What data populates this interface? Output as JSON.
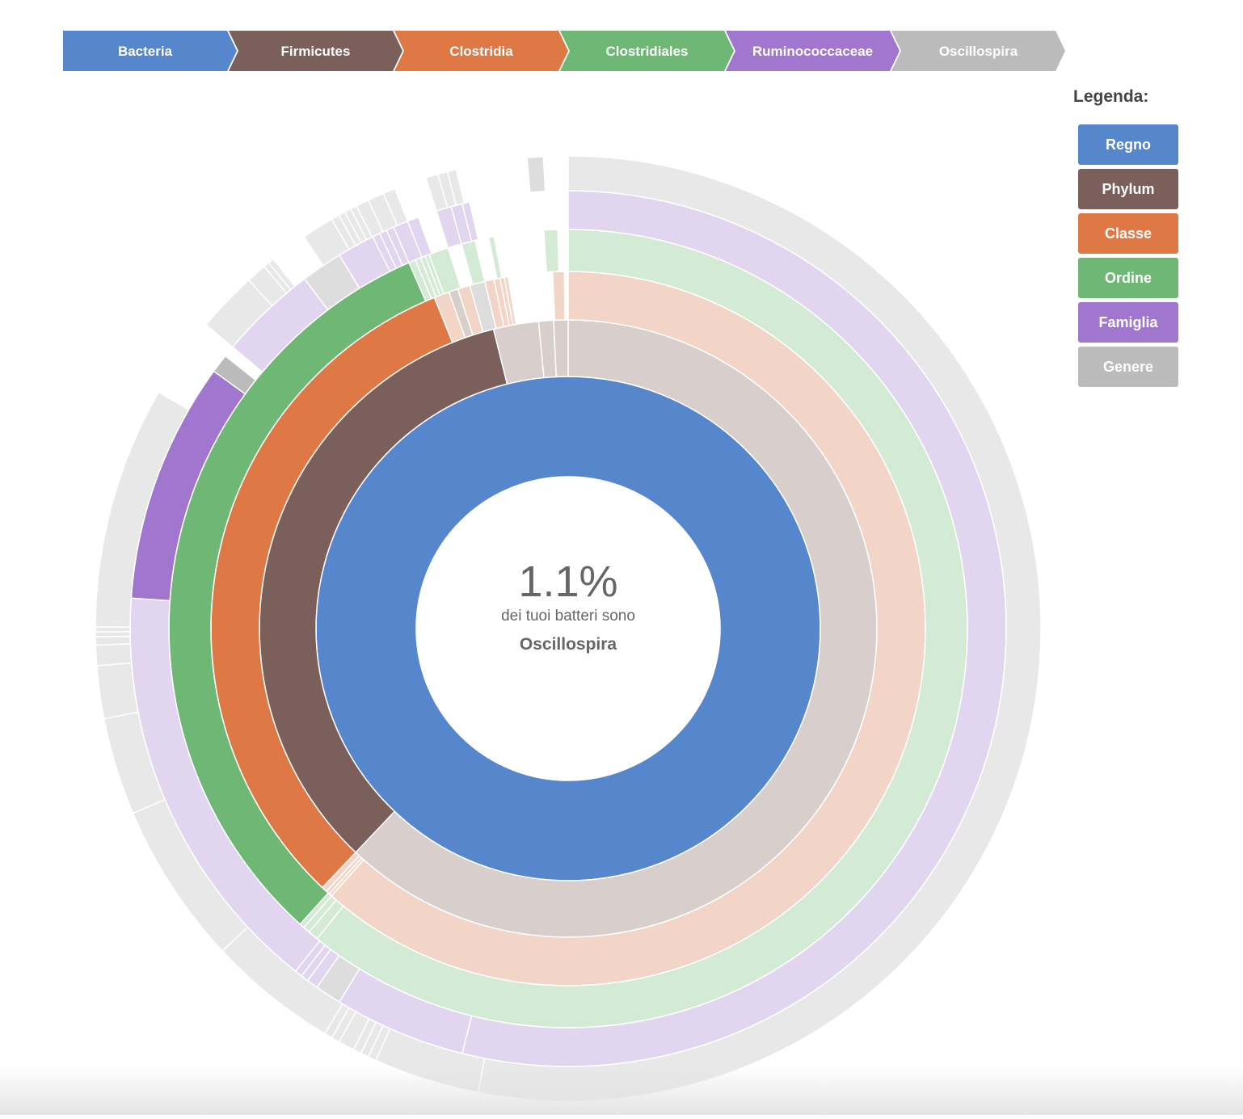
{
  "breadcrumb": [
    {
      "label": "Bacteria",
      "color": "#5687cc"
    },
    {
      "label": "Firmicutes",
      "color": "#7b5f5b"
    },
    {
      "label": "Clostridia",
      "color": "#de7845"
    },
    {
      "label": "Clostridiales",
      "color": "#6eb775"
    },
    {
      "label": "Ruminococcaceae",
      "color": "#a176cf"
    },
    {
      "label": "Oscillospira",
      "color": "#bbbbbb"
    }
  ],
  "legend": {
    "title": "Legenda:",
    "items": [
      {
        "label": "Regno",
        "color": "#5687cc"
      },
      {
        "label": "Phylum",
        "color": "#7b5f5b"
      },
      {
        "label": "Classe",
        "color": "#de7845"
      },
      {
        "label": "Ordine",
        "color": "#6eb775"
      },
      {
        "label": "Famiglia",
        "color": "#a176cf"
      },
      {
        "label": "Genere",
        "color": "#bbbbbb"
      }
    ]
  },
  "center": {
    "percentage": "1.1%",
    "text": "dei tuoi batteri sono",
    "name": "Oscillospira"
  },
  "chart_data": {
    "type": "sunburst",
    "title": "",
    "unit": "degrees of circle (clockwise from top)",
    "levels": [
      "Regno",
      "Phylum",
      "Classe",
      "Ordine",
      "Famiglia",
      "Genere"
    ],
    "selected_path": [
      "Bacteria",
      "Firmicutes",
      "Clostridia",
      "Clostridiales",
      "Ruminococcaceae",
      "Oscillospira"
    ],
    "rings": [
      [
        {
          "start": 0,
          "end": 360,
          "color": "#5687cc",
          "highlight": true
        }
      ],
      [
        {
          "start": 0,
          "end": 223.5,
          "color": "#d8cfcd"
        },
        {
          "start": 223.5,
          "end": 346.0,
          "color": "#7b5f5b",
          "highlight": true
        },
        {
          "start": 346.0,
          "end": 354.5,
          "color": "#d8cfcd"
        },
        {
          "start": 354.5,
          "end": 357.3,
          "color": "#d8cfcd"
        },
        {
          "start": 357.3,
          "end": 360,
          "color": "#d8cfcd"
        }
      ],
      [
        {
          "start": 0,
          "end": 221.5,
          "color": "#f2d5c7"
        },
        {
          "start": 221.5,
          "end": 222.0,
          "color": "#f2d5c7"
        },
        {
          "start": 222.0,
          "end": 222.6,
          "color": "#f2d5c7"
        },
        {
          "start": 222.6,
          "end": 223.5,
          "color": "#f2d5c7"
        },
        {
          "start": 223.5,
          "end": 338.0,
          "color": "#de7845",
          "highlight": true
        },
        {
          "start": 338.0,
          "end": 340.5,
          "color": "#f2d5c7"
        },
        {
          "start": 340.5,
          "end": 342.0,
          "color": "#d8cfcd"
        },
        {
          "start": 342.0,
          "end": 344.0,
          "color": "#f2d5c7"
        },
        {
          "start": 344.0,
          "end": 346.5,
          "color": "#dddddd"
        },
        {
          "start": 346.5,
          "end": 348.0,
          "color": "#f2d5c7"
        },
        {
          "start": 348.0,
          "end": 349.0,
          "color": "#f2d5c7"
        },
        {
          "start": 349.0,
          "end": 349.7,
          "color": "#f2d5c7"
        },
        {
          "start": 349.7,
          "end": 350.3,
          "color": "#f2d5c7"
        },
        {
          "start": 350.3,
          "end": 357.5,
          "color": "#ffffff"
        },
        {
          "start": 357.5,
          "end": 359.4,
          "color": "#f2d5c7"
        }
      ],
      [
        {
          "start": 0,
          "end": 219.0,
          "color": "#d3ead5"
        },
        {
          "start": 219.0,
          "end": 220.5,
          "color": "#d3ead5"
        },
        {
          "start": 220.5,
          "end": 221.5,
          "color": "#d3ead5"
        },
        {
          "start": 221.5,
          "end": 222.2,
          "color": "#d3ead5"
        },
        {
          "start": 222.2,
          "end": 336.5,
          "color": "#6eb775",
          "highlight": true
        },
        {
          "start": 336.5,
          "end": 337.5,
          "color": "#d3ead5"
        },
        {
          "start": 337.5,
          "end": 338.3,
          "color": "#d3ead5"
        },
        {
          "start": 338.3,
          "end": 339.0,
          "color": "#d3ead5"
        },
        {
          "start": 339.0,
          "end": 339.6,
          "color": "#d3ead5"
        },
        {
          "start": 339.6,
          "end": 342.5,
          "color": "#d3ead5"
        },
        {
          "start": 342.5,
          "end": 344.5,
          "color": "#ffffff"
        },
        {
          "start": 344.5,
          "end": 346.5,
          "color": "#d3ead5"
        },
        {
          "start": 346.5,
          "end": 348.5,
          "color": "#ffffff"
        },
        {
          "start": 348.5,
          "end": 349.3,
          "color": "#d3ead5"
        },
        {
          "start": 349.3,
          "end": 356.5,
          "color": "#ffffff"
        },
        {
          "start": 356.5,
          "end": 358.5,
          "color": "#d3ead5"
        }
      ],
      [
        {
          "start": 0,
          "end": 194.0,
          "color": "#e2d5ef"
        },
        {
          "start": 194.0,
          "end": 211.5,
          "color": "#e2d5ef"
        },
        {
          "start": 211.5,
          "end": 215.0,
          "color": "#dddddd"
        },
        {
          "start": 215.0,
          "end": 216.5,
          "color": "#e2d5ef"
        },
        {
          "start": 216.5,
          "end": 217.5,
          "color": "#e2d5ef"
        },
        {
          "start": 217.5,
          "end": 218.5,
          "color": "#e2d5ef"
        },
        {
          "start": 218.5,
          "end": 274.0,
          "color": "#e2d5ef"
        },
        {
          "start": 274.0,
          "end": 306.0,
          "color": "#a176cf",
          "highlight": true
        },
        {
          "start": 306.0,
          "end": 308.5,
          "color": "#bbbbbb"
        },
        {
          "start": 308.5,
          "end": 310.0,
          "color": "#ffffff"
        },
        {
          "start": 310.0,
          "end": 323.0,
          "color": "#e2d5ef"
        },
        {
          "start": 323.0,
          "end": 328.5,
          "color": "#dddddd"
        },
        {
          "start": 328.5,
          "end": 333.5,
          "color": "#e2d5ef"
        },
        {
          "start": 333.5,
          "end": 334.5,
          "color": "#e2d5ef"
        },
        {
          "start": 334.5,
          "end": 335.5,
          "color": "#e2d5ef"
        },
        {
          "start": 335.5,
          "end": 336.5,
          "color": "#e2d5ef"
        },
        {
          "start": 336.5,
          "end": 338.5,
          "color": "#e2d5ef"
        },
        {
          "start": 338.5,
          "end": 340.0,
          "color": "#e2d5ef"
        },
        {
          "start": 340.0,
          "end": 342.5,
          "color": "#ffffff"
        },
        {
          "start": 342.5,
          "end": 344.5,
          "color": "#e2d5ef"
        },
        {
          "start": 344.5,
          "end": 346.0,
          "color": "#e2d5ef"
        },
        {
          "start": 346.0,
          "end": 347.0,
          "color": "#e2d5ef"
        }
      ],
      [
        {
          "start": 0,
          "end": 191.0,
          "color": "#e8e8e8"
        },
        {
          "start": 191.0,
          "end": 204.0,
          "color": "#e8e8e8"
        },
        {
          "start": 204.0,
          "end": 205.0,
          "color": "#e8e8e8"
        },
        {
          "start": 205.0,
          "end": 206.0,
          "color": "#e8e8e8"
        },
        {
          "start": 206.0,
          "end": 207.0,
          "color": "#e8e8e8"
        },
        {
          "start": 207.0,
          "end": 209.0,
          "color": "#e8e8e8"
        },
        {
          "start": 209.0,
          "end": 210.0,
          "color": "#e8e8e8"
        },
        {
          "start": 210.0,
          "end": 211.0,
          "color": "#e8e8e8"
        },
        {
          "start": 211.0,
          "end": 227.0,
          "color": "#e8e8e8"
        },
        {
          "start": 227.0,
          "end": 247.0,
          "color": "#e8e8e8"
        },
        {
          "start": 247.0,
          "end": 259.0,
          "color": "#e8e8e8"
        },
        {
          "start": 259.0,
          "end": 265.5,
          "color": "#e8e8e8"
        },
        {
          "start": 265.5,
          "end": 268.0,
          "color": "#e8e8e8"
        },
        {
          "start": 268.0,
          "end": 269.0,
          "color": "#e8e8e8"
        },
        {
          "start": 269.0,
          "end": 269.6,
          "color": "#e8e8e8"
        },
        {
          "start": 269.6,
          "end": 270.2,
          "color": "#e8e8e8"
        },
        {
          "start": 270.2,
          "end": 300.0,
          "color": "#e8e8e8"
        },
        {
          "start": 300.0,
          "end": 310.0,
          "color": "#ffffff"
        },
        {
          "start": 310.0,
          "end": 317.5,
          "color": "#e8e8e8"
        },
        {
          "start": 317.5,
          "end": 320.0,
          "color": "#e8e8e8"
        },
        {
          "start": 320.0,
          "end": 320.7,
          "color": "#e8e8e8"
        },
        {
          "start": 320.7,
          "end": 321.4,
          "color": "#e8e8e8"
        },
        {
          "start": 321.4,
          "end": 326.0,
          "color": "#ffffff"
        },
        {
          "start": 326.0,
          "end": 330.0,
          "color": "#e8e8e8"
        },
        {
          "start": 330.0,
          "end": 331.0,
          "color": "#e8e8e8"
        },
        {
          "start": 331.0,
          "end": 331.8,
          "color": "#e8e8e8"
        },
        {
          "start": 331.8,
          "end": 332.6,
          "color": "#e8e8e8"
        },
        {
          "start": 332.6,
          "end": 333.4,
          "color": "#e8e8e8"
        },
        {
          "start": 333.4,
          "end": 335.0,
          "color": "#e8e8e8"
        },
        {
          "start": 335.0,
          "end": 337.0,
          "color": "#e8e8e8"
        },
        {
          "start": 337.0,
          "end": 338.5,
          "color": "#e8e8e8"
        },
        {
          "start": 338.5,
          "end": 342.5,
          "color": "#ffffff"
        },
        {
          "start": 342.5,
          "end": 344.0,
          "color": "#e8e8e8"
        },
        {
          "start": 344.0,
          "end": 345.2,
          "color": "#e8e8e8"
        },
        {
          "start": 345.2,
          "end": 346.3,
          "color": "#e8e8e8"
        },
        {
          "start": 346.3,
          "end": 355.0,
          "color": "#ffffff"
        },
        {
          "start": 355.0,
          "end": 357.0,
          "color": "#dddddd"
        }
      ]
    ]
  }
}
